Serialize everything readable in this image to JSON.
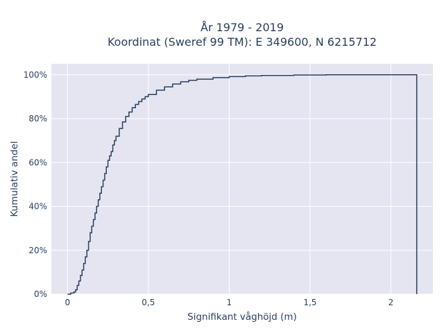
{
  "chart_data": {
    "type": "line",
    "title": "År 1979 - 2019",
    "subtitle": "Koordinat (Sweref 99 TM): E 349600, N 6215712",
    "xlabel": "Signifikant våghöjd (m)",
    "ylabel": "Kumulativ andel",
    "xlim": [
      -0.1,
      2.26
    ],
    "ylim": [
      0,
      1.05
    ],
    "xticks": [
      0,
      0.5,
      1,
      1.5,
      2
    ],
    "xtick_labels": [
      "0",
      "0,5",
      "1",
      "1,5",
      "2"
    ],
    "yticks": [
      0,
      0.2,
      0.4,
      0.6,
      0.8,
      1.0
    ],
    "ytick_labels": [
      "0%",
      "20%",
      "40%",
      "60%",
      "80%",
      "100%"
    ],
    "grid": true,
    "line_color": "#2a3f5f",
    "plot_bg": "#e5e5f2",
    "step": true,
    "series": [
      {
        "x": [
          0.0,
          0.02,
          0.04,
          0.05,
          0.06,
          0.07,
          0.08,
          0.09,
          0.1,
          0.11,
          0.12,
          0.13,
          0.14,
          0.15,
          0.16,
          0.17,
          0.18,
          0.19,
          0.2,
          0.21,
          0.22,
          0.23,
          0.24,
          0.25,
          0.26,
          0.27,
          0.28,
          0.29,
          0.3,
          0.32,
          0.34,
          0.36,
          0.38,
          0.4,
          0.42,
          0.44,
          0.46,
          0.48,
          0.5,
          0.55,
          0.6,
          0.65,
          0.7,
          0.75,
          0.8,
          0.9,
          1.0,
          1.1,
          1.2,
          1.4,
          1.6,
          2.16
        ],
        "y": [
          0.0,
          0.005,
          0.01,
          0.02,
          0.04,
          0.06,
          0.085,
          0.11,
          0.14,
          0.17,
          0.2,
          0.24,
          0.28,
          0.31,
          0.34,
          0.37,
          0.4,
          0.43,
          0.46,
          0.49,
          0.52,
          0.55,
          0.58,
          0.61,
          0.63,
          0.65,
          0.68,
          0.7,
          0.72,
          0.755,
          0.785,
          0.81,
          0.83,
          0.85,
          0.865,
          0.878,
          0.89,
          0.9,
          0.91,
          0.93,
          0.945,
          0.958,
          0.968,
          0.975,
          0.98,
          0.987,
          0.992,
          0.995,
          0.997,
          0.999,
          1.0,
          1.0
        ]
      }
    ]
  }
}
